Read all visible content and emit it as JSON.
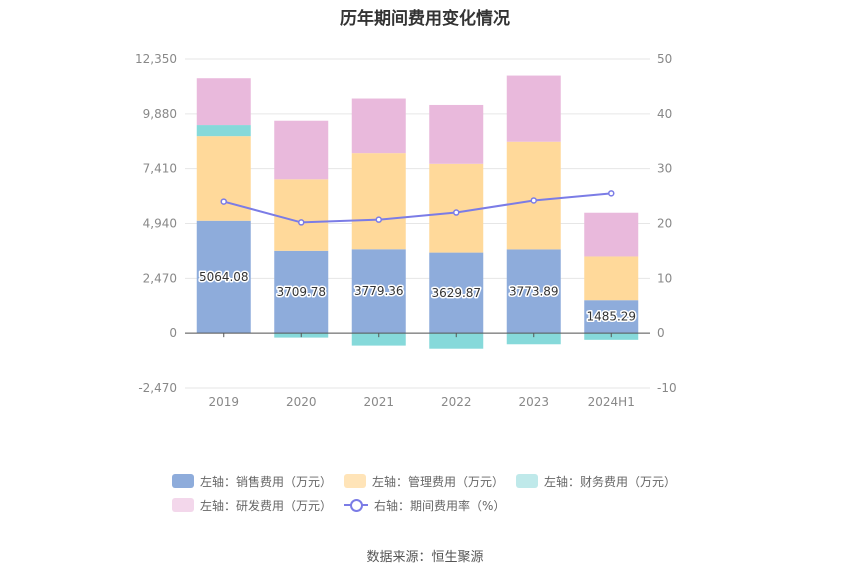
{
  "title": "历年期间费用变化情况",
  "source": "数据来源：恒生聚源",
  "colors": {
    "sales": "#8eacdb",
    "admin": "#ffd99a",
    "finance": "#86d9da",
    "rd": "#e9b9dc",
    "rate": "#7b7ce6"
  },
  "legend": [
    {
      "label": "左轴：销售费用（万元）",
      "color": "#8eacdb",
      "kind": "swatch"
    },
    {
      "label": "左轴：管理费用（万元）",
      "color": "#ffe4b8",
      "kind": "swatch"
    },
    {
      "label": "左轴：财务费用（万元）",
      "color": "#bfe9ea",
      "kind": "swatch"
    },
    {
      "label": "左轴：研发费用（万元）",
      "color": "#f3d7eb",
      "kind": "swatch"
    },
    {
      "label": "右轴：期间费用率（%）",
      "color": "#7b7ce6",
      "kind": "line"
    }
  ],
  "chart_data": {
    "type": "bar",
    "stacked": true,
    "categories": [
      "2019",
      "2020",
      "2020_",
      "2022",
      "2023",
      "2024H1"
    ],
    "category_labels": [
      "2019",
      "2020",
      "2021",
      "2022",
      "2023",
      "2024H1"
    ],
    "left_axis": {
      "min": -2470,
      "max": 12350,
      "ticks": [
        "-2,470",
        "0",
        "2,470",
        "4,940",
        "7,410",
        "9,880",
        "12,350"
      ]
    },
    "right_axis": {
      "min": -10,
      "max": 50,
      "ticks": [
        "-10",
        "0",
        "10",
        "20",
        "30",
        "40",
        "50"
      ]
    },
    "grid": true,
    "legend_position": "bottom",
    "series": [
      {
        "name": "左轴：销售费用（万元）",
        "axis": "left",
        "values": [
          5064.08,
          3709.78,
          3779.36,
          3629.87,
          3773.89,
          1485.29
        ]
      },
      {
        "name": "左轴：管理费用（万元）",
        "axis": "left",
        "values": [
          3810,
          3220,
          4330,
          4000,
          4850,
          1970
        ]
      },
      {
        "name": "左轴：财务费用（万元）",
        "axis": "left",
        "values": [
          500,
          -200,
          -560,
          -700,
          -500,
          -300
        ]
      },
      {
        "name": "左轴：研发费用（万元）",
        "axis": "left",
        "values": [
          2110,
          2640,
          2460,
          2650,
          2980,
          1970
        ]
      },
      {
        "name": "右轴：期间费用率（%）",
        "axis": "right",
        "type": "line",
        "values": [
          24.0,
          20.2,
          20.7,
          22.0,
          24.2,
          25.5
        ]
      }
    ],
    "data_labels": [
      "5064.08",
      "3709.78",
      "3779.36",
      "3629.87",
      "3773.89",
      "1485.29"
    ]
  }
}
